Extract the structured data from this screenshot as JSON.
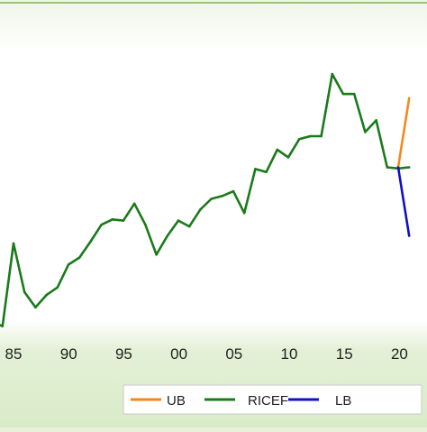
{
  "chart_data": {
    "type": "line",
    "title": "",
    "xlabel": "",
    "ylabel": "",
    "x_tick_labels": [
      "85",
      "90",
      "95",
      "00",
      "05",
      "10",
      "15",
      "20"
    ],
    "legend_position": "bottom",
    "grid": false,
    "series": [
      {
        "name": "UB",
        "color": "#f08a1c",
        "x": [
          2020,
          2021
        ],
        "y": [
          26.7,
          38.5
        ]
      },
      {
        "name": "RICEF",
        "color": "#1a7a1a",
        "x": [
          1983,
          1984,
          1985,
          1986,
          1987,
          1988,
          1989,
          1990,
          1991,
          1992,
          1993,
          1994,
          1995,
          1996,
          1997,
          1998,
          1999,
          2000,
          2001,
          2002,
          2003,
          2004,
          2005,
          2006,
          2007,
          2008,
          2009,
          2010,
          2011,
          2012,
          2013,
          2014,
          2015,
          2016,
          2017,
          2018,
          2019,
          2020,
          2021
        ],
        "y": [
          0.3,
          -0.4,
          13.7,
          5.4,
          2.8,
          4.9,
          6.2,
          10.1,
          11.3,
          14.0,
          16.9,
          17.8,
          17.6,
          20.5,
          16.9,
          11.8,
          15.0,
          17.6,
          16.6,
          19.5,
          21.3,
          21.8,
          22.6,
          18.9,
          26.4,
          25.9,
          29.7,
          28.4,
          31.5,
          32.0,
          32.0,
          42.6,
          39.2,
          39.2,
          32.7,
          34.7,
          26.7,
          26.5,
          26.7
        ]
      },
      {
        "name": "LB",
        "color": "#1010c8",
        "x": [
          2020,
          2021
        ],
        "y": [
          26.7,
          15.0
        ]
      }
    ]
  }
}
